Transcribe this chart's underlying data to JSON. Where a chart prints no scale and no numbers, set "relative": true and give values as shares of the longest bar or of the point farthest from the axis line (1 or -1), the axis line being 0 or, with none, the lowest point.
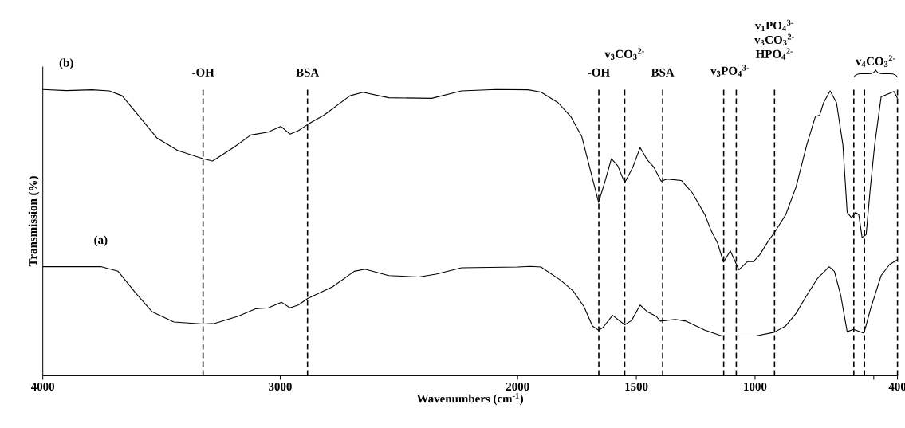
{
  "chart_data": {
    "type": "line",
    "xlabel": "Wavenumbers (cm$^{-1}$)",
    "ylabel": "Transmission (%)",
    "relative": true,
    "xlim": [
      4000,
      400
    ],
    "xticks": [
      4000,
      3000,
      2000,
      1500,
      1000,
      {
        "value": 500,
        "label": null
      },
      400
    ],
    "marker": "none",
    "line_style": "solid",
    "series": [
      {
        "name": "(a)",
        "color": "#000000",
        "x": [
          4000,
          3756,
          3683,
          3611,
          3539,
          3448,
          3325,
          3276,
          3177,
          3104,
          3050,
          2995,
          2959,
          2924,
          2884,
          2779,
          2688,
          2643,
          2543,
          2416,
          2344,
          2236,
          2000,
          1946,
          1902,
          1821,
          1766,
          1721,
          1685,
          1659,
          1640,
          1600,
          1549,
          1520,
          1484,
          1453,
          1417,
          1399,
          1336,
          1292,
          1211,
          1140,
          997,
          919,
          871,
          827,
          782,
          737,
          688,
          666,
          639,
          612,
          585,
          541,
          514,
          469,
          433,
          402
        ],
        "values": [
          0.381,
          0.381,
          0.365,
          0.291,
          0.223,
          0.188,
          0.181,
          0.183,
          0.208,
          0.234,
          0.237,
          0.257,
          0.237,
          0.247,
          0.27,
          0.311,
          0.365,
          0.372,
          0.35,
          0.345,
          0.355,
          0.377,
          0.38,
          0.382,
          0.38,
          0.335,
          0.296,
          0.242,
          0.174,
          0.159,
          0.169,
          0.211,
          0.178,
          0.193,
          0.247,
          0.223,
          0.208,
          0.191,
          0.197,
          0.191,
          0.159,
          0.139,
          0.139,
          0.152,
          0.174,
          0.218,
          0.281,
          0.34,
          0.381,
          0.365,
          0.281,
          0.154,
          0.162,
          0.149,
          0.232,
          0.35,
          0.389,
          0.404
        ]
      },
      {
        "name": "(b)",
        "color": "#000000",
        "x": [
          4000,
          3901,
          3793,
          3720,
          3666,
          3593,
          3520,
          3432,
          3324,
          3285,
          3195,
          3124,
          3051,
          2997,
          2959,
          2924,
          2880,
          2816,
          2706,
          2652,
          2543,
          2362,
          2236,
          2091,
          1955,
          1902,
          1830,
          1776,
          1766,
          1730,
          1694,
          1659,
          1632,
          1605,
          1578,
          1549,
          1515,
          1484,
          1453,
          1426,
          1395,
          1372,
          1310,
          1265,
          1211,
          1185,
          1158,
          1133,
          1104,
          1068,
          1032,
          1006,
          979,
          943,
          916,
          871,
          827,
          782,
          746,
          728,
          711,
          684,
          657,
          630,
          612,
          594,
          576,
          563,
          549,
          532,
          514,
          496,
          469,
          443,
          415,
          400
        ],
        "values": [
          1.0,
          0.996,
          0.999,
          0.995,
          0.978,
          0.905,
          0.831,
          0.787,
          0.758,
          0.75,
          0.798,
          0.841,
          0.851,
          0.871,
          0.844,
          0.856,
          0.88,
          0.91,
          0.978,
          0.99,
          0.971,
          0.969,
          0.995,
          1.0,
          0.999,
          0.991,
          0.954,
          0.905,
          0.89,
          0.836,
          0.719,
          0.606,
          0.679,
          0.758,
          0.733,
          0.674,
          0.728,
          0.797,
          0.753,
          0.728,
          0.679,
          0.687,
          0.682,
          0.64,
          0.562,
          0.507,
          0.464,
          0.397,
          0.436,
          0.37,
          0.399,
          0.399,
          0.424,
          0.472,
          0.503,
          0.562,
          0.66,
          0.807,
          0.905,
          0.91,
          0.954,
          0.995,
          0.954,
          0.807,
          0.571,
          0.552,
          0.571,
          0.562,
          0.483,
          0.493,
          0.66,
          0.807,
          0.974,
          0.983,
          0.993,
          0.969
        ]
      }
    ],
    "ref_lines": [
      {
        "axis": "x",
        "value": 3325,
        "label": "-OH",
        "color": "#000000",
        "line_style": "dashed"
      },
      {
        "axis": "x",
        "value": 2885,
        "label": "BSA",
        "color": "#000000",
        "line_style": "dashed"
      },
      {
        "axis": "x",
        "value": 1658,
        "label": "-OH",
        "color": "#000000",
        "line_style": "dashed"
      },
      {
        "axis": "x",
        "value": 1549,
        "label": "v$_{3}$CO$_{3}$$^{2-}$",
        "color": "#000000",
        "line_style": "dashed"
      },
      {
        "axis": "x",
        "value": 1389,
        "label": "BSA",
        "color": "#000000",
        "line_style": "dashed"
      },
      {
        "axis": "x",
        "value": 1132,
        "label": "v$_{3}$PO$_{4}$$^{3-}$",
        "color": "#000000",
        "line_style": "dashed"
      },
      {
        "axis": "x",
        "value": 1079,
        "label": null,
        "color": "#000000",
        "line_style": "dashed"
      },
      {
        "axis": "x",
        "value": 918,
        "label": "v$_{1}$PO$_{4}$$^{3-}$ v$_{3}$CO$_{3}$$^{2-}$ HPO$_{4}$$^{2-}$",
        "color": "#000000",
        "line_style": "dashed"
      },
      {
        "axis": "x",
        "value": 584,
        "label": "v$_{4}$CO$_{3}$$^{2-}$",
        "color": "#000000",
        "line_style": "dashed"
      },
      {
        "axis": "x",
        "value": 539,
        "label": null,
        "color": "#000000",
        "line_style": "dashed"
      },
      {
        "axis": "x",
        "value": 400,
        "label": null,
        "color": "#000000",
        "line_style": "dashed"
      }
    ]
  }
}
